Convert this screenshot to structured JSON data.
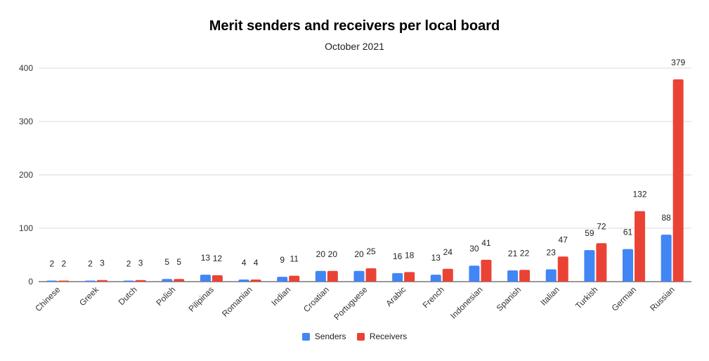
{
  "chart_data": {
    "type": "bar",
    "title": "Merit senders and receivers per local board",
    "subtitle": "October 2021",
    "xlabel": "",
    "ylabel": "",
    "ylim": [
      0,
      400
    ],
    "yticks": [
      0,
      100,
      200,
      300,
      400
    ],
    "grid": true,
    "legend_position": "bottom",
    "categories": [
      "Chinese",
      "Greek",
      "Dutch",
      "Polish",
      "Pilipinas",
      "Romanian",
      "Indian",
      "Croatian",
      "Portuguese",
      "Arabic",
      "French",
      "Indonesian",
      "Spanish",
      "Italian",
      "Turkish",
      "German",
      "Russian"
    ],
    "series": [
      {
        "name": "Senders",
        "color": "#4285f4",
        "values": [
          2,
          2,
          2,
          5,
          13,
          4,
          9,
          20,
          20,
          16,
          13,
          30,
          21,
          23,
          59,
          61,
          88
        ]
      },
      {
        "name": "Receivers",
        "color": "#ea4335",
        "values": [
          2,
          3,
          3,
          5,
          12,
          4,
          11,
          20,
          25,
          18,
          24,
          41,
          22,
          47,
          72,
          132,
          379
        ]
      }
    ]
  }
}
